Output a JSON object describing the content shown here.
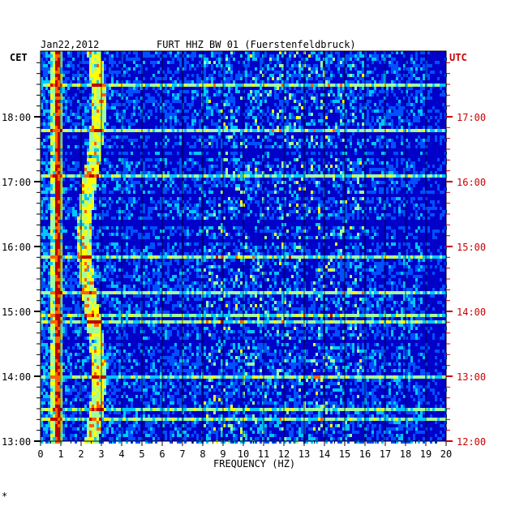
{
  "header": {
    "date": "Jan22,2012",
    "station": "FURT HHZ BW 01 (Fuerstenfeldbruck)",
    "left_tz": "CET",
    "right_tz": "UTC",
    "footnote": "*"
  },
  "colors": {
    "background": "#ffffff",
    "axis": "#000000",
    "utc_label": "#cc0000",
    "colormap": [
      "#00007a",
      "#0000c8",
      "#0050ff",
      "#00c8ff",
      "#a0ffa0",
      "#ffff00",
      "#ff6000",
      "#c00000"
    ]
  },
  "chart_data": {
    "type": "heatmap",
    "title": "FURT HHZ BW 01 (Fuerstenfeldbruck)",
    "xlabel": "FREQUENCY (HZ)",
    "ylabel_left": "CET",
    "ylabel_right": "UTC",
    "xlim": [
      0,
      20
    ],
    "x_ticks": [
      "0",
      "1",
      "2",
      "3",
      "4",
      "5",
      "6",
      "7",
      "8",
      "9",
      "10",
      "11",
      "12",
      "13",
      "14",
      "15",
      "16",
      "17",
      "18",
      "19",
      "20"
    ],
    "y_ticks_cet": [
      "18:00",
      "17:00",
      "16:00",
      "15:00",
      "14:00",
      "13:00"
    ],
    "y_ticks_utc": [
      "17:00",
      "16:00",
      "15:00",
      "14:00",
      "13:00",
      "12:00"
    ],
    "time_range_cet": [
      "13:00",
      "18:50"
    ],
    "grid": true,
    "dominant_frequency_bands_hz": [
      0.8,
      2.8
    ],
    "description_values": {
      "strong_line_hz": 0.8,
      "secondary_band_hz": [
        2.3,
        3.0
      ]
    }
  }
}
